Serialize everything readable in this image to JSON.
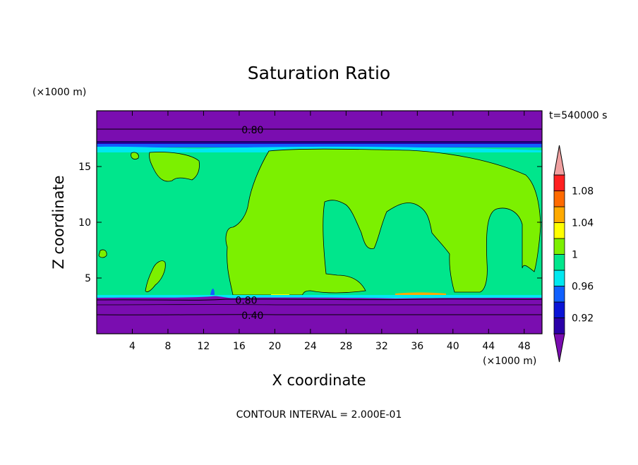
{
  "chart_data": {
    "type": "heatmap",
    "title": "Saturation Ratio",
    "xlabel": "X coordinate",
    "ylabel": "Z coordinate",
    "x_unit": "(×1000 m)",
    "y_unit": "(×1000 m)",
    "time_label": "t=540000 s",
    "footnote": "CONTOUR INTERVAL = 2.000E-01",
    "xlim": [
      0,
      50
    ],
    "ylim": [
      0,
      20
    ],
    "xticks": [
      4,
      8,
      12,
      16,
      20,
      24,
      28,
      32,
      36,
      40,
      44,
      48
    ],
    "yticks": [
      5,
      10,
      15
    ],
    "colorbar": {
      "levels": [
        0.92,
        0.96,
        1,
        1.04,
        1.08
      ],
      "tick_labels": [
        "0.92",
        "0.96",
        "1",
        "1.04",
        "1.08"
      ],
      "colors": [
        "#7a0db0",
        "#2a00a8",
        "#0a14d6",
        "#1060ff",
        "#00e8f0",
        "#00e68c",
        "#7cf000",
        "#ffff00",
        "#ffaa00",
        "#ff6a00",
        "#ff2020",
        "#f0a0a0"
      ],
      "extend": "both"
    },
    "contour_labels": [
      {
        "text": "0.80",
        "x": 17.5,
        "y": 18.3
      },
      {
        "text": "0.80",
        "x": 16.8,
        "y": 3.0
      },
      {
        "text": "0.40",
        "x": 17.5,
        "y": 1.65
      }
    ],
    "regions": {
      "upper_band_value": "< 0.80",
      "lower_band_value": "< 0.80",
      "background_value": "0.98–1.00",
      "cloud_value": "1.00–1.02"
    }
  }
}
